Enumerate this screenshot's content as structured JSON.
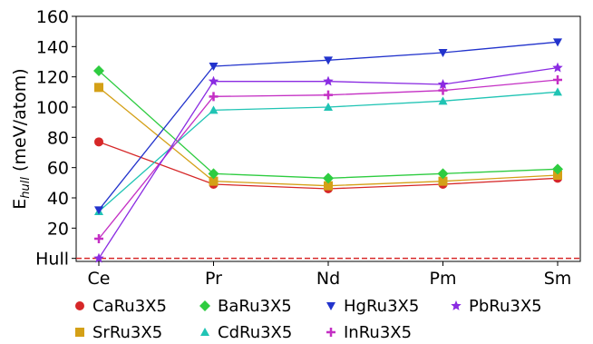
{
  "chart_data": {
    "type": "line",
    "categories": [
      "Ce",
      "Pr",
      "Nd",
      "Pm",
      "Sm"
    ],
    "ylabel": {
      "main": "E",
      "sub": "hull",
      "rest": " (meV/atom)"
    },
    "ylim": [
      -2,
      160
    ],
    "yticks": [
      {
        "value": 160,
        "label": "160"
      },
      {
        "value": 140,
        "label": "140"
      },
      {
        "value": 120,
        "label": "120"
      },
      {
        "value": 100,
        "label": "100"
      },
      {
        "value": 80,
        "label": "80"
      },
      {
        "value": 60,
        "label": "60"
      },
      {
        "value": 40,
        "label": "40"
      },
      {
        "value": 20,
        "label": "20"
      },
      {
        "value": 0,
        "label": "Hull"
      }
    ],
    "hull_line": {
      "value": 0,
      "color": "#d62728",
      "style": "dashed"
    },
    "grid": false,
    "legend_position": "bottom",
    "series": [
      {
        "name": "CaRu3X5",
        "color": "#d62728",
        "marker": "circle",
        "values": [
          77,
          49,
          46,
          49,
          53
        ]
      },
      {
        "name": "SrRu3X5",
        "color": "#d4a017",
        "marker": "square",
        "values": [
          113,
          51,
          48,
          51,
          55
        ]
      },
      {
        "name": "BaRu3X5",
        "color": "#2ecc40",
        "marker": "diamond",
        "values": [
          124,
          56,
          53,
          56,
          59
        ]
      },
      {
        "name": "CdRu3X5",
        "color": "#20c4b4",
        "marker": "triangle-up",
        "values": [
          31,
          98,
          100,
          104,
          110
        ]
      },
      {
        "name": "HgRu3X5",
        "color": "#2233cc",
        "marker": "triangle-down",
        "values": [
          32,
          127,
          131,
          136,
          143
        ]
      },
      {
        "name": "InRu3X5",
        "color": "#c42fc4",
        "marker": "plus",
        "values": [
          13,
          107,
          108,
          111,
          118
        ]
      },
      {
        "name": "PbRu3X5",
        "color": "#8a2be2",
        "marker": "star",
        "values": [
          0,
          117,
          117,
          115,
          126
        ]
      }
    ],
    "legend_order": [
      "CaRu3X5",
      "BaRu3X5",
      "HgRu3X5",
      "PbRu3X5",
      "SrRu3X5",
      "CdRu3X5",
      "InRu3X5"
    ]
  }
}
